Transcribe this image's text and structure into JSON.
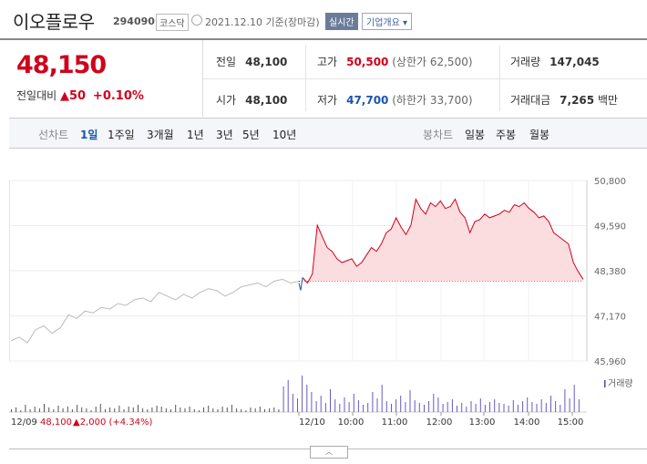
{
  "header": {
    "name": "이오플로우",
    "code": "294090",
    "market": "코스닥",
    "date_text": "2021.12.10 기준(장마감)",
    "realtime_label": "실시간",
    "company_label": "기업개요 ▾"
  },
  "price": {
    "current": "48,150",
    "change_label": "전일대비",
    "change_arrow": "▲",
    "change_value": "50",
    "change_pct": "+0.10%"
  },
  "stats": {
    "prev_close_label": "전일",
    "prev_close": "48,100",
    "high_label": "고가",
    "high": "50,500",
    "upper_limit": "(상한가 62,500)",
    "volume_label": "거래량",
    "volume": "147,045",
    "open_label": "시가",
    "open": "48,100",
    "low_label": "저가",
    "low": "47,700",
    "lower_limit": "(하한가 33,700)",
    "amount_label": "거래대금",
    "amount": "7,265",
    "amount_unit": "백만"
  },
  "tabs": {
    "line_label": "선차트",
    "line_tabs": [
      "1일",
      "1주일",
      "3개월",
      "1년",
      "3년",
      "5년",
      "10년"
    ],
    "candle_label": "봉차트",
    "candle_tabs": [
      "일봉",
      "주봉",
      "월봉"
    ]
  },
  "colors": {
    "up": "#d0021b",
    "down": "#1a54b2",
    "area": "#fbdde0"
  },
  "chart_data": {
    "type": "line",
    "y_ticks": [
      "50,800",
      "49,590",
      "48,380",
      "47,170",
      "45,960"
    ],
    "ylim": [
      45960,
      50800
    ],
    "reference": 48100,
    "x_ticks": [
      "12/10",
      "10:00",
      "11:00",
      "12:00",
      "13:00",
      "14:00",
      "15:00"
    ],
    "volume_label": "거래량",
    "prev_day": {
      "label": "12/09",
      "close": "48,100",
      "change_arrow": "▲",
      "change": "2,000",
      "change_pct": "(+4.34%)",
      "values": [
        46500,
        46600,
        46450,
        46800,
        46900,
        46700,
        46850,
        47200,
        47100,
        47300,
        47250,
        47400,
        47350,
        47500,
        47450,
        47600,
        47650,
        47550,
        47800,
        47700,
        47600,
        47750,
        47650,
        47800,
        47900,
        47850,
        47700,
        47800,
        47950,
        48000,
        48050,
        47950,
        48100,
        48150,
        48050,
        48100
      ]
    },
    "today": {
      "values": [
        48200,
        48050,
        48300,
        49600,
        49300,
        49000,
        48900,
        48700,
        48600,
        48650,
        48700,
        48500,
        48600,
        48800,
        49000,
        48900,
        49100,
        49400,
        49500,
        49800,
        49550,
        49350,
        49600,
        50300,
        50050,
        49900,
        50200,
        50100,
        50250,
        50050,
        50100,
        50300,
        49950,
        49800,
        49400,
        49700,
        49750,
        49900,
        49800,
        49850,
        49900,
        50000,
        49950,
        50150,
        50100,
        50200,
        50050,
        49950,
        49800,
        49850,
        49700,
        49400,
        49300,
        49200,
        49100,
        48600,
        48350,
        48150
      ]
    },
    "volume": [
      3,
      5,
      2,
      8,
      3,
      6,
      4,
      9,
      5,
      3,
      7,
      4,
      6,
      3,
      8,
      5,
      4,
      2,
      6,
      9,
      3,
      5,
      4,
      7,
      3,
      6,
      5,
      8,
      4,
      3,
      5,
      7,
      6,
      4,
      3,
      8,
      5,
      4,
      6,
      3,
      2,
      5,
      7,
      4,
      3,
      6,
      5,
      8,
      4,
      3,
      2,
      5,
      4,
      6,
      3,
      4,
      5,
      3,
      28,
      35,
      20,
      15,
      40,
      30,
      22,
      12,
      18,
      10,
      25,
      14,
      9,
      16,
      11,
      20,
      13,
      8,
      10,
      22,
      15,
      30,
      12,
      9,
      14,
      18,
      11,
      24,
      13,
      10,
      8,
      12,
      20,
      16,
      9,
      11,
      14,
      7,
      10,
      6,
      12,
      9,
      15,
      8,
      11,
      14,
      10,
      9,
      7,
      13,
      8,
      12,
      16,
      11,
      9,
      14,
      10,
      18,
      12,
      8,
      25,
      15,
      30,
      14
    ]
  },
  "collapse_label": "︿"
}
